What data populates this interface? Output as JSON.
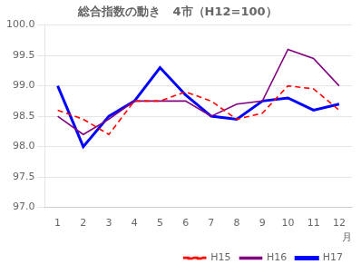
{
  "chart_data": {
    "type": "line",
    "title": "総合指数の動き　4市（H12=100）",
    "xlabel": "月",
    "x": [
      1,
      2,
      3,
      4,
      5,
      6,
      7,
      8,
      9,
      10,
      11,
      12
    ],
    "xlim": [
      0.5,
      12.5
    ],
    "xticks": [
      1,
      2,
      3,
      4,
      5,
      6,
      7,
      8,
      9,
      10,
      11,
      12
    ],
    "ylim": [
      97.0,
      100.0
    ],
    "yticks": [
      {
        "value": 97.0,
        "label": "97.0"
      },
      97.5,
      {
        "value": 98.0,
        "label": "98.0"
      },
      98.5,
      {
        "value": 99.0,
        "label": "99.0"
      },
      99.5,
      {
        "value": 100.0,
        "label": "100.0"
      }
    ],
    "grid": "y",
    "legend": "lower right",
    "series": [
      {
        "name": "H15",
        "color": "#ff0000",
        "line_style": "dashed",
        "values": [
          98.6,
          98.45,
          98.2,
          98.75,
          98.75,
          98.9,
          98.75,
          98.45,
          98.55,
          99.0,
          98.95,
          98.6
        ]
      },
      {
        "name": "H16",
        "color": "#800080",
        "line_style": "solid",
        "values": [
          98.5,
          98.2,
          98.45,
          98.75,
          98.75,
          98.75,
          98.5,
          98.7,
          98.75,
          99.6,
          99.45,
          99.0
        ]
      },
      {
        "name": "H17",
        "color": "#0000ff",
        "line_style": "solid",
        "values": [
          99.0,
          98.0,
          98.5,
          98.75,
          99.3,
          98.85,
          98.5,
          98.45,
          98.75,
          98.8,
          98.6,
          98.7
        ]
      }
    ]
  }
}
